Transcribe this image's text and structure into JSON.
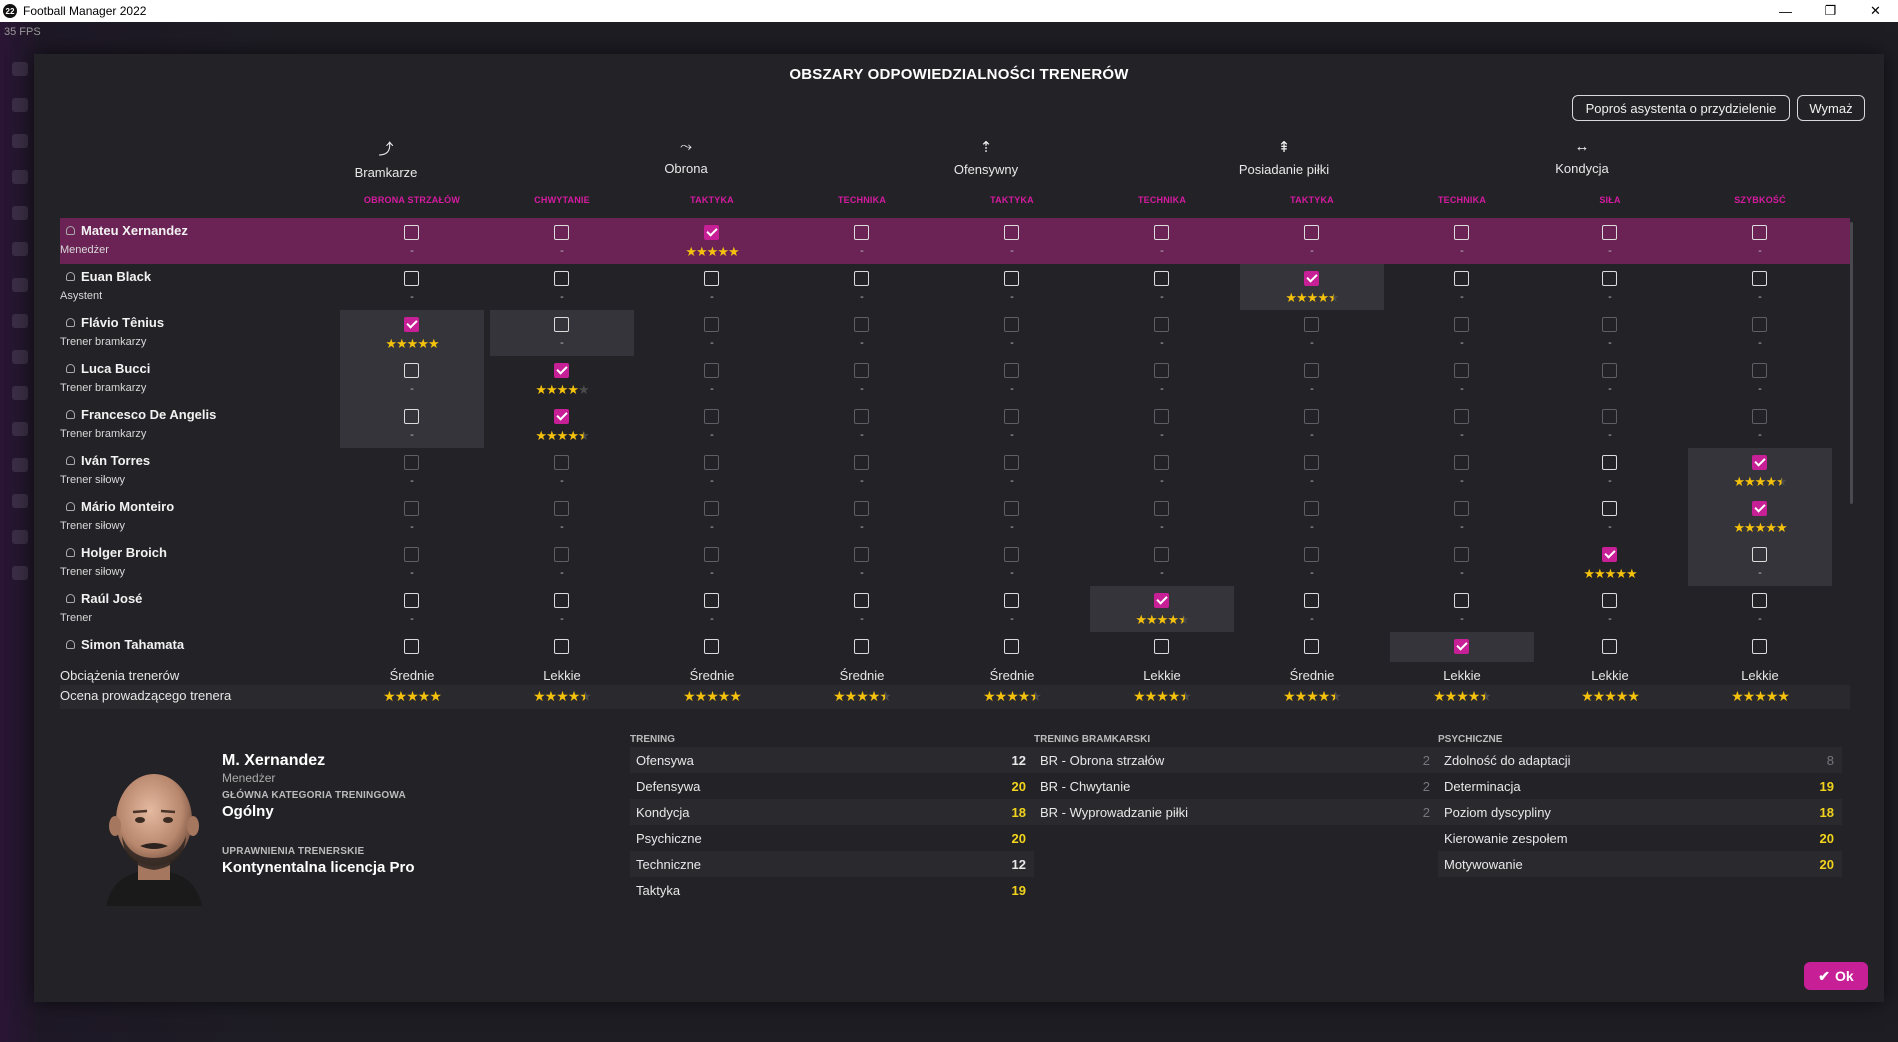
{
  "window": {
    "title": "Football Manager 2022",
    "logo": "22",
    "fps": "35 FPS"
  },
  "modal": {
    "title": "OBSZARY ODPOWIEDZIALNOŚCI TRENERÓW",
    "ask_assistant": "Poproś asystenta o przydzielenie",
    "clear": "Wymaż",
    "ok": "Ok"
  },
  "categories": [
    {
      "label": "Bramkarze",
      "icon": "goalkeeper-icon",
      "glyph": "⤴"
    },
    {
      "label": "Obrona",
      "icon": "defence-icon",
      "glyph": "⤳"
    },
    {
      "label": "Ofensywny",
      "icon": "attack-icon",
      "glyph": "⇡"
    },
    {
      "label": "Posiadanie piłki",
      "icon": "possession-icon",
      "glyph": "⇞"
    },
    {
      "label": "Kondycja",
      "icon": "fitness-icon",
      "glyph": "↔"
    }
  ],
  "columns": [
    "OBRONA STRZAŁÓW",
    "CHWYTANIE",
    "TAKTYKA",
    "TECHNIKA",
    "TAKTYKA",
    "TECHNIKA",
    "TAKTYKA",
    "TECHNIKA",
    "SIŁA",
    "SZYBKOŚĆ"
  ],
  "coaches": [
    {
      "name": "Mateu Xernandez",
      "role": "Menedżer",
      "selected": true,
      "cells": [
        [
          0,
          0,
          0,
          -1
        ],
        [
          0,
          0,
          0,
          -1
        ],
        [
          0,
          1,
          0,
          5
        ],
        [
          0,
          0,
          0,
          -1
        ],
        [
          0,
          0,
          0,
          -1
        ],
        [
          0,
          0,
          0,
          -1
        ],
        [
          0,
          0,
          0,
          -1
        ],
        [
          0,
          0,
          0,
          -1
        ],
        [
          0,
          0,
          0,
          -1
        ],
        [
          0,
          0,
          0,
          -1
        ]
      ]
    },
    {
      "name": "Euan Black",
      "role": "Asystent",
      "selected": false,
      "cells": [
        [
          0,
          0,
          0,
          -1
        ],
        [
          0,
          0,
          0,
          -1
        ],
        [
          0,
          0,
          0,
          -1
        ],
        [
          0,
          0,
          0,
          -1
        ],
        [
          0,
          0,
          0,
          -1
        ],
        [
          0,
          0,
          0,
          -1
        ],
        [
          0,
          1,
          1,
          4.5
        ],
        [
          0,
          0,
          0,
          -1
        ],
        [
          0,
          0,
          0,
          -1
        ],
        [
          0,
          0,
          0,
          -1
        ]
      ]
    },
    {
      "name": "Flávio Tênius",
      "role": "Trener bramkarzy",
      "selected": false,
      "cells": [
        [
          0,
          1,
          1,
          5
        ],
        [
          0,
          0,
          1,
          -1
        ],
        [
          1,
          0,
          0,
          -1
        ],
        [
          1,
          0,
          0,
          -1
        ],
        [
          1,
          0,
          0,
          -1
        ],
        [
          1,
          0,
          0,
          -1
        ],
        [
          1,
          0,
          0,
          -1
        ],
        [
          1,
          0,
          0,
          -1
        ],
        [
          1,
          0,
          0,
          -1
        ],
        [
          1,
          0,
          0,
          -1
        ]
      ]
    },
    {
      "name": "Luca Bucci",
      "role": "Trener bramkarzy",
      "selected": false,
      "cells": [
        [
          0,
          0,
          1,
          -1
        ],
        [
          0,
          1,
          0,
          4
        ],
        [
          1,
          0,
          0,
          -1
        ],
        [
          1,
          0,
          0,
          -1
        ],
        [
          1,
          0,
          0,
          -1
        ],
        [
          1,
          0,
          0,
          -1
        ],
        [
          1,
          0,
          0,
          -1
        ],
        [
          1,
          0,
          0,
          -1
        ],
        [
          1,
          0,
          0,
          -1
        ],
        [
          1,
          0,
          0,
          -1
        ]
      ]
    },
    {
      "name": "Francesco De Angelis",
      "role": "Trener bramkarzy",
      "selected": false,
      "cells": [
        [
          0,
          0,
          1,
          -1
        ],
        [
          0,
          1,
          0,
          4.5
        ],
        [
          1,
          0,
          0,
          -1
        ],
        [
          1,
          0,
          0,
          -1
        ],
        [
          1,
          0,
          0,
          -1
        ],
        [
          1,
          0,
          0,
          -1
        ],
        [
          1,
          0,
          0,
          -1
        ],
        [
          1,
          0,
          0,
          -1
        ],
        [
          1,
          0,
          0,
          -1
        ],
        [
          1,
          0,
          0,
          -1
        ]
      ]
    },
    {
      "name": "Iván Torres",
      "role": "Trener siłowy",
      "selected": false,
      "cells": [
        [
          1,
          0,
          0,
          -1
        ],
        [
          1,
          0,
          0,
          -1
        ],
        [
          1,
          0,
          0,
          -1
        ],
        [
          1,
          0,
          0,
          -1
        ],
        [
          1,
          0,
          0,
          -1
        ],
        [
          1,
          0,
          0,
          -1
        ],
        [
          1,
          0,
          0,
          -1
        ],
        [
          1,
          0,
          0,
          -1
        ],
        [
          0,
          0,
          0,
          -1
        ],
        [
          0,
          1,
          1,
          4.5
        ]
      ]
    },
    {
      "name": "Mário Monteiro",
      "role": "Trener siłowy",
      "selected": false,
      "cells": [
        [
          1,
          0,
          0,
          -1
        ],
        [
          1,
          0,
          0,
          -1
        ],
        [
          1,
          0,
          0,
          -1
        ],
        [
          1,
          0,
          0,
          -1
        ],
        [
          1,
          0,
          0,
          -1
        ],
        [
          1,
          0,
          0,
          -1
        ],
        [
          1,
          0,
          0,
          -1
        ],
        [
          1,
          0,
          0,
          -1
        ],
        [
          0,
          0,
          0,
          -1
        ],
        [
          0,
          1,
          1,
          5
        ]
      ]
    },
    {
      "name": "Holger Broich",
      "role": "Trener siłowy",
      "selected": false,
      "cells": [
        [
          1,
          0,
          0,
          -1
        ],
        [
          1,
          0,
          0,
          -1
        ],
        [
          1,
          0,
          0,
          -1
        ],
        [
          1,
          0,
          0,
          -1
        ],
        [
          1,
          0,
          0,
          -1
        ],
        [
          1,
          0,
          0,
          -1
        ],
        [
          1,
          0,
          0,
          -1
        ],
        [
          1,
          0,
          0,
          -1
        ],
        [
          0,
          1,
          0,
          5
        ],
        [
          0,
          0,
          1,
          -1
        ]
      ]
    },
    {
      "name": "Raúl José",
      "role": "Trener",
      "selected": false,
      "cells": [
        [
          0,
          0,
          0,
          -1
        ],
        [
          0,
          0,
          0,
          -1
        ],
        [
          0,
          0,
          0,
          -1
        ],
        [
          0,
          0,
          0,
          -1
        ],
        [
          0,
          0,
          0,
          -1
        ],
        [
          0,
          1,
          1,
          4.5
        ],
        [
          0,
          0,
          0,
          -1
        ],
        [
          0,
          0,
          0,
          -1
        ],
        [
          0,
          0,
          0,
          -1
        ],
        [
          0,
          0,
          0,
          -1
        ]
      ]
    },
    {
      "name": "Simon Tahamata",
      "role": "",
      "selected": false,
      "cells": [
        [
          0,
          0,
          0,
          -2
        ],
        [
          0,
          0,
          0,
          -2
        ],
        [
          0,
          0,
          0,
          -2
        ],
        [
          0,
          0,
          0,
          -2
        ],
        [
          0,
          0,
          0,
          -2
        ],
        [
          0,
          0,
          0,
          -2
        ],
        [
          0,
          0,
          0,
          -2
        ],
        [
          0,
          1,
          1,
          -2
        ],
        [
          0,
          0,
          0,
          -2
        ],
        [
          0,
          0,
          0,
          -2
        ]
      ]
    }
  ],
  "summary": {
    "load_label": "Obciążenia trenerów",
    "rating_label": "Ocena prowadzącego trenera",
    "loads": [
      "Średnie",
      "Lekkie",
      "Średnie",
      "Średnie",
      "Średnie",
      "Lekkie",
      "Średnie",
      "Lekkie",
      "Lekkie",
      "Lekkie"
    ],
    "ratings": [
      5,
      4.5,
      5,
      4.5,
      4.5,
      4.5,
      4.5,
      4.5,
      5,
      5
    ]
  },
  "profile": {
    "name": "M. Xernandez",
    "role": "Menedżer",
    "main_category_label": "GŁÓWNA KATEGORIA TRENINGOWA",
    "main_category": "Ogólny",
    "license_label": "UPRAWNIENIA TRENERSKIE",
    "license": "Kontynentalna licencja Pro"
  },
  "attributes": [
    {
      "title": "TRENING",
      "items": [
        {
          "name": "Ofensywa",
          "value": "12",
          "tone": "w"
        },
        {
          "name": "Defensywa",
          "value": "20",
          "tone": "y"
        },
        {
          "name": "Kondycja",
          "value": "18",
          "tone": "y"
        },
        {
          "name": "Psychiczne",
          "value": "20",
          "tone": "y"
        },
        {
          "name": "Techniczne",
          "value": "12",
          "tone": "w"
        },
        {
          "name": "Taktyka",
          "value": "19",
          "tone": "y"
        }
      ]
    },
    {
      "title": "TRENING BRAMKARSKI",
      "items": [
        {
          "name": "BR - Obrona strzałów",
          "value": "2",
          "tone": "g"
        },
        {
          "name": "BR - Chwytanie",
          "value": "2",
          "tone": "g"
        },
        {
          "name": "BR - Wyprowadzanie piłki",
          "value": "2",
          "tone": "g"
        }
      ]
    },
    {
      "title": "PSYCHICZNE",
      "items": [
        {
          "name": "Zdolność do adaptacji",
          "value": "8",
          "tone": "g"
        },
        {
          "name": "Determinacja",
          "value": "19",
          "tone": "y"
        },
        {
          "name": "Poziom dyscypliny",
          "value": "18",
          "tone": "y"
        },
        {
          "name": "Kierowanie zespołem",
          "value": "20",
          "tone": "y"
        },
        {
          "name": "Motywowanie",
          "value": "20",
          "tone": "y"
        }
      ]
    }
  ]
}
